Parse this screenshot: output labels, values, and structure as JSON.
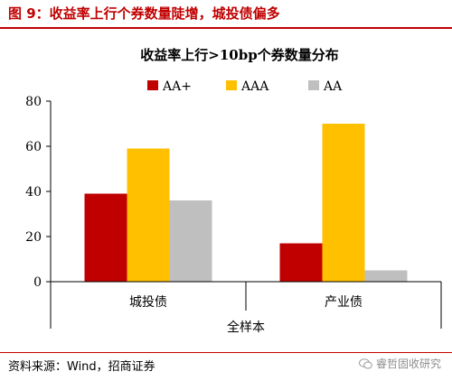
{
  "figure_title": "图 9：收益率上行个券数量陡增，城投债偏多",
  "source_note": "资料来源：Wind，招商证券",
  "watermark": "睿哲固收研究",
  "colors": {
    "accent": "#c00000",
    "AA+": "#c00000",
    "AAA": "#ffc000",
    "AA": "#bfbfbf"
  },
  "chart_data": {
    "type": "bar",
    "title": "收益率上行>10bp个券数量分布",
    "categories": [
      "城投债",
      "产业债"
    ],
    "group_label": "全样本",
    "xlabel": "全样本",
    "ylabel": "",
    "ylim": [
      0,
      80
    ],
    "yticks": [
      0,
      20,
      40,
      60,
      80
    ],
    "grid": false,
    "legend_position": "top",
    "series": [
      {
        "name": "AA+",
        "color": "#c00000",
        "values": [
          39,
          17
        ]
      },
      {
        "name": "AAA",
        "color": "#ffc000",
        "values": [
          59,
          70
        ]
      },
      {
        "name": "AA",
        "color": "#bfbfbf",
        "values": [
          36,
          5
        ]
      }
    ]
  }
}
